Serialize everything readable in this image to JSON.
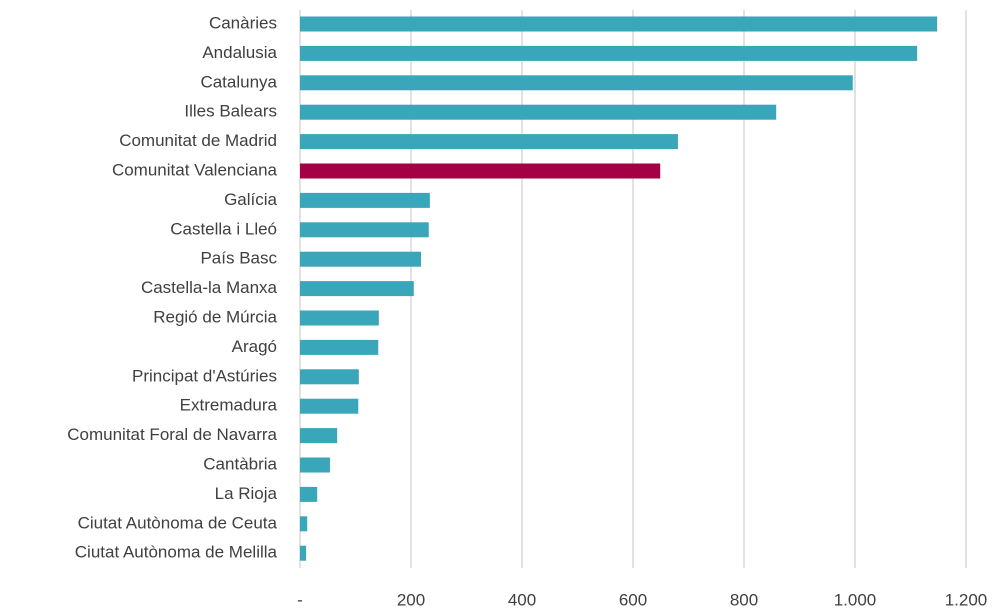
{
  "chart_data": {
    "type": "hbar",
    "categories": [
      "Canàries",
      "Andalusia",
      "Catalunya",
      "Illes Balears",
      "Comunitat de Madrid",
      "Comunitat Valenciana",
      "Galícia",
      "Castella i Lleó",
      "País Basc",
      "Castella-la Manxa",
      "Regió de Múrcia",
      "Aragó",
      "Principat d'Astúries",
      "Extremadura",
      "Comunitat Foral de Navarra",
      "Cantàbria",
      "La Rioja",
      "Ciutat Autònoma de Ceuta",
      "Ciutat Autònoma de Melilla"
    ],
    "values": [
      1148,
      1112,
      996,
      858,
      681,
      649,
      234,
      232,
      218,
      205,
      142,
      141,
      106,
      105,
      67,
      54,
      31,
      13,
      11
    ],
    "colors": [
      "#3aa6b9",
      "#3aa6b9",
      "#3aa6b9",
      "#3aa6b9",
      "#3aa6b9",
      "#a50044",
      "#3aa6b9",
      "#3aa6b9",
      "#3aa6b9",
      "#3aa6b9",
      "#3aa6b9",
      "#3aa6b9",
      "#3aa6b9",
      "#3aa6b9",
      "#3aa6b9",
      "#3aa6b9",
      "#3aa6b9",
      "#3aa6b9",
      "#3aa6b9"
    ],
    "xlim": [
      0,
      1200
    ],
    "xticks": [
      {
        "value": 0,
        "label": "-"
      },
      200,
      400,
      600,
      800,
      {
        "value": 1000,
        "label": "1.000"
      },
      {
        "value": 1200,
        "label": "1.200"
      }
    ],
    "grid": true
  }
}
